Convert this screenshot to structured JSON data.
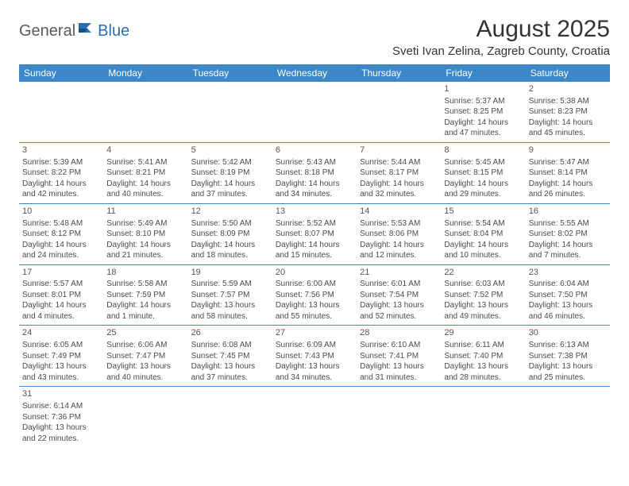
{
  "logo": {
    "general": "General",
    "blue": "Blue"
  },
  "title": "August 2025",
  "location": "Sveti Ivan Zelina, Zagreb County, Croatia",
  "colors": {
    "header_bg": "#3b87c8",
    "header_text": "#ffffff",
    "border": "#3b87c8",
    "logo_gray": "#5a5a5a",
    "logo_blue": "#2a6fb5",
    "body_text": "#4a4a4a",
    "bg": "#ffffff"
  },
  "days": [
    "Sunday",
    "Monday",
    "Tuesday",
    "Wednesday",
    "Thursday",
    "Friday",
    "Saturday"
  ],
  "weeks": [
    [
      null,
      null,
      null,
      null,
      null,
      {
        "n": "1",
        "sr": "Sunrise: 5:37 AM",
        "ss": "Sunset: 8:25 PM",
        "d1": "Daylight: 14 hours",
        "d2": "and 47 minutes."
      },
      {
        "n": "2",
        "sr": "Sunrise: 5:38 AM",
        "ss": "Sunset: 8:23 PM",
        "d1": "Daylight: 14 hours",
        "d2": "and 45 minutes."
      }
    ],
    [
      {
        "n": "3",
        "sr": "Sunrise: 5:39 AM",
        "ss": "Sunset: 8:22 PM",
        "d1": "Daylight: 14 hours",
        "d2": "and 42 minutes."
      },
      {
        "n": "4",
        "sr": "Sunrise: 5:41 AM",
        "ss": "Sunset: 8:21 PM",
        "d1": "Daylight: 14 hours",
        "d2": "and 40 minutes."
      },
      {
        "n": "5",
        "sr": "Sunrise: 5:42 AM",
        "ss": "Sunset: 8:19 PM",
        "d1": "Daylight: 14 hours",
        "d2": "and 37 minutes."
      },
      {
        "n": "6",
        "sr": "Sunrise: 5:43 AM",
        "ss": "Sunset: 8:18 PM",
        "d1": "Daylight: 14 hours",
        "d2": "and 34 minutes."
      },
      {
        "n": "7",
        "sr": "Sunrise: 5:44 AM",
        "ss": "Sunset: 8:17 PM",
        "d1": "Daylight: 14 hours",
        "d2": "and 32 minutes."
      },
      {
        "n": "8",
        "sr": "Sunrise: 5:45 AM",
        "ss": "Sunset: 8:15 PM",
        "d1": "Daylight: 14 hours",
        "d2": "and 29 minutes."
      },
      {
        "n": "9",
        "sr": "Sunrise: 5:47 AM",
        "ss": "Sunset: 8:14 PM",
        "d1": "Daylight: 14 hours",
        "d2": "and 26 minutes."
      }
    ],
    [
      {
        "n": "10",
        "sr": "Sunrise: 5:48 AM",
        "ss": "Sunset: 8:12 PM",
        "d1": "Daylight: 14 hours",
        "d2": "and 24 minutes."
      },
      {
        "n": "11",
        "sr": "Sunrise: 5:49 AM",
        "ss": "Sunset: 8:10 PM",
        "d1": "Daylight: 14 hours",
        "d2": "and 21 minutes."
      },
      {
        "n": "12",
        "sr": "Sunrise: 5:50 AM",
        "ss": "Sunset: 8:09 PM",
        "d1": "Daylight: 14 hours",
        "d2": "and 18 minutes."
      },
      {
        "n": "13",
        "sr": "Sunrise: 5:52 AM",
        "ss": "Sunset: 8:07 PM",
        "d1": "Daylight: 14 hours",
        "d2": "and 15 minutes."
      },
      {
        "n": "14",
        "sr": "Sunrise: 5:53 AM",
        "ss": "Sunset: 8:06 PM",
        "d1": "Daylight: 14 hours",
        "d2": "and 12 minutes."
      },
      {
        "n": "15",
        "sr": "Sunrise: 5:54 AM",
        "ss": "Sunset: 8:04 PM",
        "d1": "Daylight: 14 hours",
        "d2": "and 10 minutes."
      },
      {
        "n": "16",
        "sr": "Sunrise: 5:55 AM",
        "ss": "Sunset: 8:02 PM",
        "d1": "Daylight: 14 hours",
        "d2": "and 7 minutes."
      }
    ],
    [
      {
        "n": "17",
        "sr": "Sunrise: 5:57 AM",
        "ss": "Sunset: 8:01 PM",
        "d1": "Daylight: 14 hours",
        "d2": "and 4 minutes."
      },
      {
        "n": "18",
        "sr": "Sunrise: 5:58 AM",
        "ss": "Sunset: 7:59 PM",
        "d1": "Daylight: 14 hours",
        "d2": "and 1 minute."
      },
      {
        "n": "19",
        "sr": "Sunrise: 5:59 AM",
        "ss": "Sunset: 7:57 PM",
        "d1": "Daylight: 13 hours",
        "d2": "and 58 minutes."
      },
      {
        "n": "20",
        "sr": "Sunrise: 6:00 AM",
        "ss": "Sunset: 7:56 PM",
        "d1": "Daylight: 13 hours",
        "d2": "and 55 minutes."
      },
      {
        "n": "21",
        "sr": "Sunrise: 6:01 AM",
        "ss": "Sunset: 7:54 PM",
        "d1": "Daylight: 13 hours",
        "d2": "and 52 minutes."
      },
      {
        "n": "22",
        "sr": "Sunrise: 6:03 AM",
        "ss": "Sunset: 7:52 PM",
        "d1": "Daylight: 13 hours",
        "d2": "and 49 minutes."
      },
      {
        "n": "23",
        "sr": "Sunrise: 6:04 AM",
        "ss": "Sunset: 7:50 PM",
        "d1": "Daylight: 13 hours",
        "d2": "and 46 minutes."
      }
    ],
    [
      {
        "n": "24",
        "sr": "Sunrise: 6:05 AM",
        "ss": "Sunset: 7:49 PM",
        "d1": "Daylight: 13 hours",
        "d2": "and 43 minutes."
      },
      {
        "n": "25",
        "sr": "Sunrise: 6:06 AM",
        "ss": "Sunset: 7:47 PM",
        "d1": "Daylight: 13 hours",
        "d2": "and 40 minutes."
      },
      {
        "n": "26",
        "sr": "Sunrise: 6:08 AM",
        "ss": "Sunset: 7:45 PM",
        "d1": "Daylight: 13 hours",
        "d2": "and 37 minutes."
      },
      {
        "n": "27",
        "sr": "Sunrise: 6:09 AM",
        "ss": "Sunset: 7:43 PM",
        "d1": "Daylight: 13 hours",
        "d2": "and 34 minutes."
      },
      {
        "n": "28",
        "sr": "Sunrise: 6:10 AM",
        "ss": "Sunset: 7:41 PM",
        "d1": "Daylight: 13 hours",
        "d2": "and 31 minutes."
      },
      {
        "n": "29",
        "sr": "Sunrise: 6:11 AM",
        "ss": "Sunset: 7:40 PM",
        "d1": "Daylight: 13 hours",
        "d2": "and 28 minutes."
      },
      {
        "n": "30",
        "sr": "Sunrise: 6:13 AM",
        "ss": "Sunset: 7:38 PM",
        "d1": "Daylight: 13 hours",
        "d2": "and 25 minutes."
      }
    ],
    [
      {
        "n": "31",
        "sr": "Sunrise: 6:14 AM",
        "ss": "Sunset: 7:36 PM",
        "d1": "Daylight: 13 hours",
        "d2": "and 22 minutes."
      },
      null,
      null,
      null,
      null,
      null,
      null
    ]
  ]
}
